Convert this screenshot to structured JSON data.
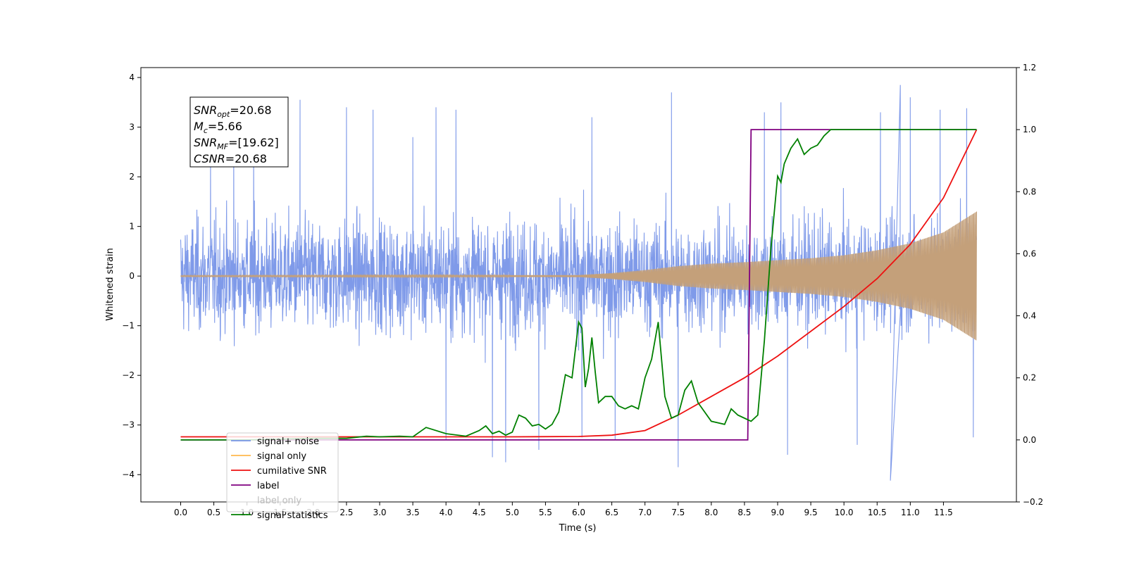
{
  "chart_data": {
    "type": "line",
    "xlabel": "Time (s)",
    "ylabel_left": "Whitened strain",
    "ylabel_right": "",
    "xlim": [
      -0.6,
      12.6
    ],
    "ylim_left": [
      -4.55,
      4.2
    ],
    "ylim_right": [
      -0.2,
      1.2
    ],
    "x_ticks": [
      "0.0",
      "0.5",
      "1.0",
      "1.5",
      "2.0",
      "2.5",
      "3.0",
      "3.5",
      "4.0",
      "4.5",
      "5.0",
      "5.5",
      "6.0",
      "6.5",
      "7.0",
      "7.5",
      "8.0",
      "8.5",
      "9.0",
      "9.5",
      "10.0",
      "10.5",
      "11.0",
      "11.5"
    ],
    "y_ticks_left": [
      "4",
      "3",
      "2",
      "1",
      "0",
      "−1",
      "−2",
      "−3",
      "−4"
    ],
    "y_ticks_right": [
      "1.2",
      "1.0",
      "0.8",
      "0.6",
      "0.4",
      "0.2",
      "0.0",
      "−0.2"
    ],
    "grid": false,
    "legend_position": "lower-left",
    "annotation": {
      "lines": [
        {
          "main": "SNR",
          "sub": "opt",
          "rest": "=20.68"
        },
        {
          "main": "M",
          "sub": "c",
          "rest": "=5.66"
        },
        {
          "main": "SNR",
          "sub": "MF",
          "rest": "=[19.62]"
        },
        {
          "main": "CSNR",
          "sub": "",
          "rest": "=20.68"
        }
      ]
    },
    "series": [
      {
        "name": "signal+ noise",
        "color": "#7895e8",
        "axis": "left",
        "description_values": {
          "time_range": [
            0,
            12.0
          ],
          "noise_band_typical": [
            -2.0,
            2.0
          ],
          "noise_peak_max": 3.85,
          "noise_peak_min": -4.12,
          "spike_points": [
            [
              0.45,
              2.4
            ],
            [
              0.8,
              2.9
            ],
            [
              1.1,
              2.7
            ],
            [
              1.8,
              3.55
            ],
            [
              2.5,
              3.4
            ],
            [
              2.9,
              3.35
            ],
            [
              3.5,
              2.8
            ],
            [
              3.85,
              3.4
            ],
            [
              4.0,
              -3.3
            ],
            [
              4.15,
              3.35
            ],
            [
              4.7,
              -3.65
            ],
            [
              4.9,
              -3.75
            ],
            [
              5.4,
              -3.5
            ],
            [
              6.05,
              -3.25
            ],
            [
              6.2,
              3.2
            ],
            [
              6.55,
              -3.3
            ],
            [
              7.4,
              3.7
            ],
            [
              7.5,
              -3.85
            ],
            [
              8.8,
              3.3
            ],
            [
              9.05,
              3.5
            ],
            [
              9.15,
              -3.6
            ],
            [
              10.2,
              -3.4
            ],
            [
              10.55,
              3.3
            ],
            [
              10.85,
              3.85
            ],
            [
              10.7,
              -4.12
            ],
            [
              11.0,
              3.6
            ],
            [
              11.45,
              3.35
            ],
            [
              11.85,
              3.38
            ],
            [
              11.95,
              -3.25
            ]
          ]
        }
      },
      {
        "name": "signal only",
        "color": "#ffb84d",
        "axis": "left",
        "description_values": {
          "envelope": [
            [
              0,
              0.01
            ],
            [
              6.0,
              0.02
            ],
            [
              6.5,
              0.06
            ],
            [
              7.0,
              0.12
            ],
            [
              7.5,
              0.2
            ],
            [
              8.0,
              0.25
            ],
            [
              8.5,
              0.28
            ],
            [
              9.0,
              0.32
            ],
            [
              9.5,
              0.36
            ],
            [
              10.0,
              0.42
            ],
            [
              10.5,
              0.52
            ],
            [
              11.0,
              0.66
            ],
            [
              11.5,
              0.88
            ],
            [
              12.0,
              1.3
            ]
          ]
        }
      },
      {
        "name": "cumilative SNR",
        "color": "#ee1111",
        "axis": "right",
        "x": [
          0,
          1,
          2,
          3,
          4,
          5,
          6,
          6.5,
          7,
          7.5,
          8,
          8.5,
          9,
          9.5,
          10,
          10.5,
          11,
          11.5,
          12.0
        ],
        "values": [
          0.01,
          0.01,
          0.01,
          0.01,
          0.01,
          0.01,
          0.011,
          0.015,
          0.03,
          0.08,
          0.14,
          0.2,
          0.27,
          0.35,
          0.43,
          0.52,
          0.63,
          0.78,
          1.0
        ]
      },
      {
        "name": "label",
        "color": "#800080",
        "axis": "right",
        "x": [
          0,
          8.55,
          8.6,
          12.0
        ],
        "values": [
          0.0,
          0.0,
          1.0,
          1.0
        ]
      },
      {
        "name": "label only",
        "color": "#ffffff",
        "axis": "right",
        "x": [],
        "values": []
      },
      {
        "name": "signal statistics",
        "color": "#008000",
        "axis": "right",
        "x": [
          0,
          1,
          2,
          2.5,
          2.8,
          3.0,
          3.3,
          3.5,
          3.7,
          4.0,
          4.3,
          4.5,
          4.6,
          4.7,
          4.8,
          4.9,
          5.0,
          5.1,
          5.2,
          5.3,
          5.4,
          5.5,
          5.6,
          5.7,
          5.8,
          5.9,
          6.0,
          6.05,
          6.1,
          6.15,
          6.2,
          6.25,
          6.3,
          6.4,
          6.5,
          6.6,
          6.7,
          6.8,
          6.9,
          7.0,
          7.1,
          7.2,
          7.25,
          7.3,
          7.4,
          7.5,
          7.6,
          7.7,
          7.8,
          8.0,
          8.2,
          8.3,
          8.4,
          8.5,
          8.6,
          8.7,
          8.8,
          8.9,
          9.0,
          9.05,
          9.1,
          9.2,
          9.3,
          9.4,
          9.5,
          9.6,
          9.7,
          9.8,
          9.9,
          10.0,
          10.5,
          11,
          11.5,
          12.0
        ],
        "values": [
          0.0,
          0.0,
          0.005,
          0.005,
          0.012,
          0.01,
          0.012,
          0.01,
          0.04,
          0.02,
          0.012,
          0.03,
          0.045,
          0.02,
          0.028,
          0.015,
          0.025,
          0.08,
          0.07,
          0.045,
          0.05,
          0.035,
          0.05,
          0.09,
          0.21,
          0.2,
          0.38,
          0.36,
          0.17,
          0.23,
          0.33,
          0.22,
          0.12,
          0.14,
          0.14,
          0.11,
          0.1,
          0.11,
          0.1,
          0.2,
          0.26,
          0.38,
          0.26,
          0.14,
          0.07,
          0.08,
          0.16,
          0.19,
          0.12,
          0.06,
          0.05,
          0.1,
          0.08,
          0.07,
          0.06,
          0.08,
          0.32,
          0.62,
          0.85,
          0.83,
          0.89,
          0.94,
          0.97,
          0.92,
          0.94,
          0.95,
          0.98,
          1.0,
          1.0,
          1.0,
          1.0,
          1.0,
          1.0,
          1.0
        ]
      }
    ]
  }
}
